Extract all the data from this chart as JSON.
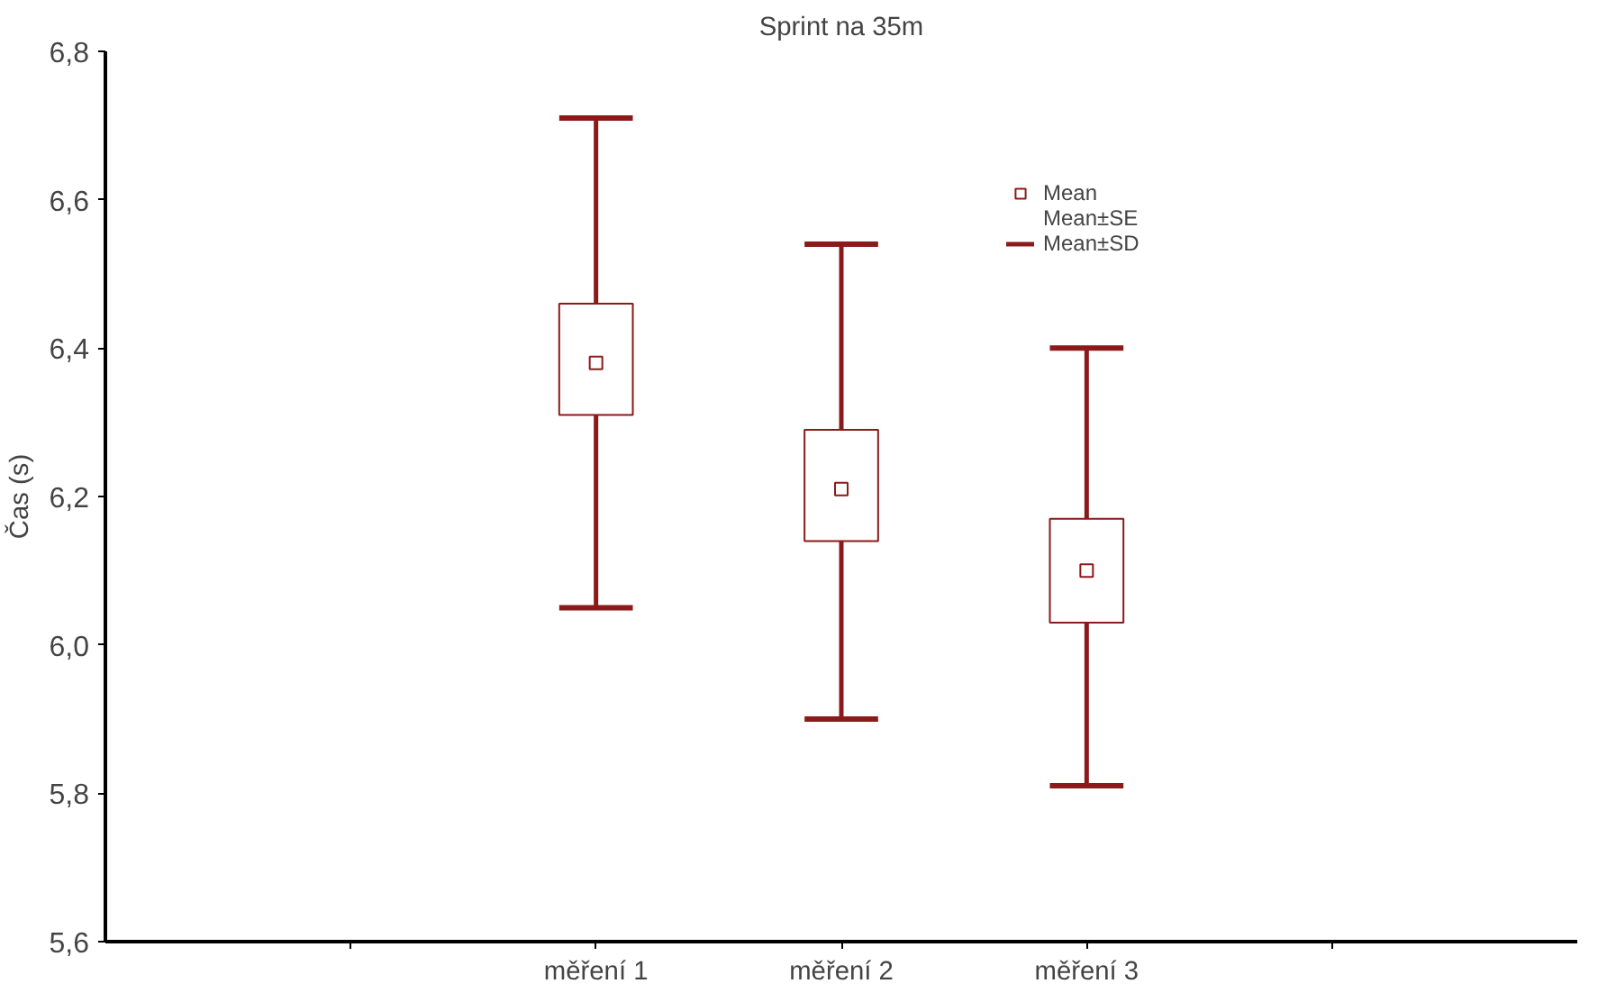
{
  "chart_data": {
    "type": "box",
    "title": "Sprint na 35m",
    "ylabel": "Čas (s)",
    "categories": [
      null,
      "měření 1",
      "měření 2",
      "měření 3",
      null
    ],
    "color": "#8b1a1a",
    "boxes": [
      null,
      {
        "low": 6.05,
        "q1": 6.31,
        "q3": 6.46,
        "high": 6.71
      },
      {
        "low": 5.9,
        "q1": 6.14,
        "q3": 6.29,
        "high": 6.54
      },
      {
        "low": 5.81,
        "q1": 6.03,
        "q3": 6.17,
        "high": 6.4
      },
      null
    ],
    "series": [
      {
        "name": "Mean",
        "type": "scatter",
        "color": "#8b1a1a",
        "marker": "square",
        "x": [
          "měření 1",
          "měření 2",
          "měření 3"
        ],
        "values": [
          6.38,
          6.21,
          6.1
        ]
      }
    ],
    "annotations": [
      "Mean±SE",
      "Mean±SD"
    ],
    "ylim": [
      5.6,
      6.8
    ],
    "yticks": [
      {
        "value": 5.6,
        "label": "5,6"
      },
      {
        "value": 5.8,
        "label": "5,8"
      },
      {
        "value": 6.0,
        "label": "6,0"
      },
      {
        "value": 6.2,
        "label": "6,2"
      },
      {
        "value": 6.4,
        "label": "6,4"
      },
      {
        "value": 6.6,
        "label": "6,6"
      },
      {
        "value": 6.8,
        "label": "6,8"
      }
    ],
    "grid": false,
    "legend": "top right"
  }
}
